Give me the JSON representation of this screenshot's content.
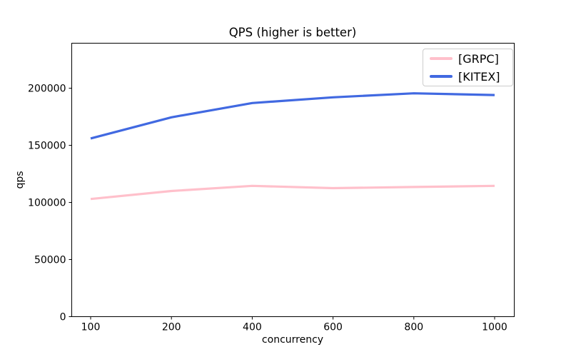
{
  "chart_data": {
    "type": "line",
    "title": "QPS (higher is better)",
    "xlabel": "concurrency",
    "ylabel": "qps",
    "categories": [
      "100",
      "200",
      "400",
      "600",
      "800",
      "1000"
    ],
    "x_axis_note": "categorical, evenly spaced points",
    "y_ticks": [
      0,
      50000,
      100000,
      150000,
      200000
    ],
    "y_tick_labels": [
      "0",
      "50000",
      "100000",
      "150000",
      "200000"
    ],
    "ylim": [
      0,
      239000
    ],
    "grid": false,
    "axis_color": "#000000",
    "legend_position": "upper right",
    "series": [
      {
        "name": "[GRPC]",
        "color": "#ffc0cb",
        "values": [
          103000,
          110000,
          114500,
          112500,
          113500,
          114500
        ]
      },
      {
        "name": "[KITEX]",
        "color": "#4169e1",
        "values": [
          156000,
          174500,
          187000,
          192000,
          195500,
          194000
        ]
      }
    ]
  }
}
